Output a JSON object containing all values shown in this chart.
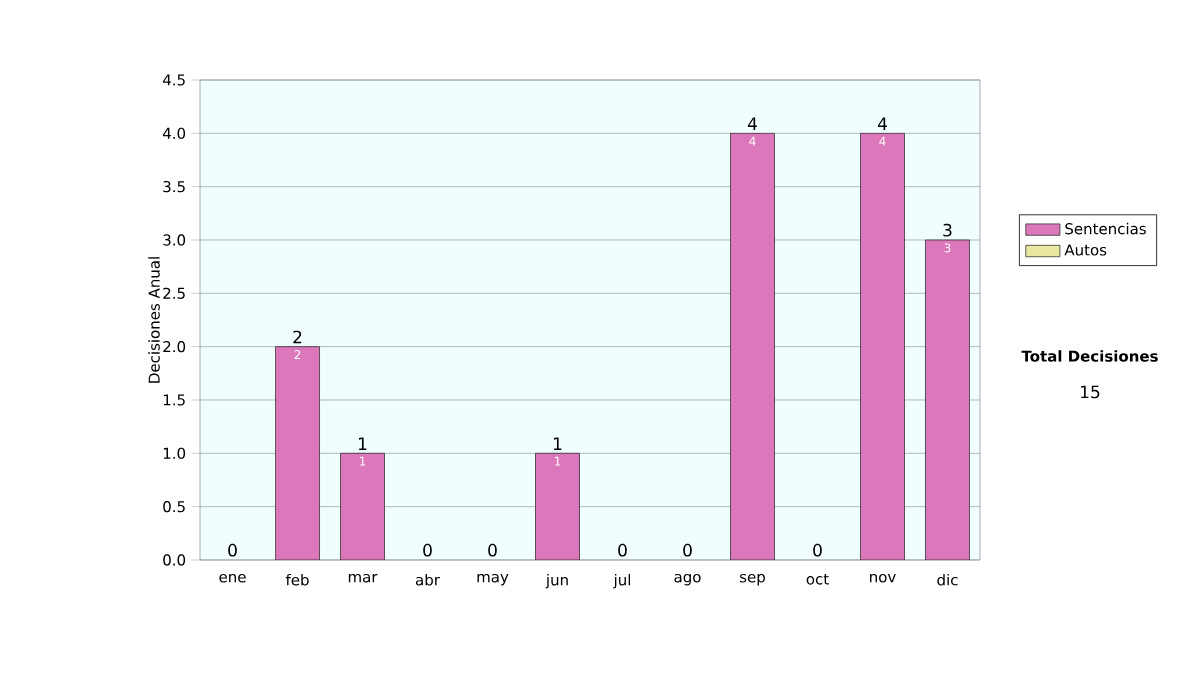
{
  "chart_data": {
    "type": "bar",
    "stacked": true,
    "ylabel": "Decisiones Anual",
    "categories": [
      "ene",
      "feb",
      "mar",
      "abr",
      "may",
      "jun",
      "jul",
      "ago",
      "sep",
      "oct",
      "nov",
      "dic"
    ],
    "series": [
      {
        "name": "Sentencias",
        "color": "#dd77bb",
        "values": [
          0,
          2,
          1,
          0,
          0,
          1,
          0,
          0,
          4,
          0,
          4,
          3
        ],
        "value_labels": [
          null,
          "2",
          "1",
          null,
          null,
          "1",
          null,
          null,
          "4",
          null,
          "4",
          "3"
        ]
      },
      {
        "name": "Autos",
        "color": "#e8e8a0",
        "values": [
          0,
          0,
          0,
          0,
          0,
          0,
          0,
          0,
          0,
          0,
          0,
          0
        ]
      }
    ],
    "totals": [
      "0",
      "2",
      "1",
      "0",
      "0",
      "1",
      "0",
      "0",
      "4",
      "0",
      "4",
      "3"
    ],
    "ylim": [
      0,
      4.5
    ],
    "yticks": [
      {
        "value": 0,
        "label": "0.0"
      },
      {
        "value": 0.5,
        "label": "0.5"
      },
      {
        "value": 1,
        "label": "1.0"
      },
      {
        "value": 1.5,
        "label": "1.5"
      },
      {
        "value": 2,
        "label": "2.0"
      },
      {
        "value": 2.5,
        "label": "2.5"
      },
      {
        "value": 3,
        "label": "3.0"
      },
      {
        "value": 3.5,
        "label": "3.5"
      },
      {
        "value": 4,
        "label": "4.0"
      },
      {
        "value": 4.5,
        "label": "4.5"
      }
    ],
    "grid": "y",
    "legend": "right",
    "annotations": [
      "Total Decisiones",
      "15"
    ]
  }
}
